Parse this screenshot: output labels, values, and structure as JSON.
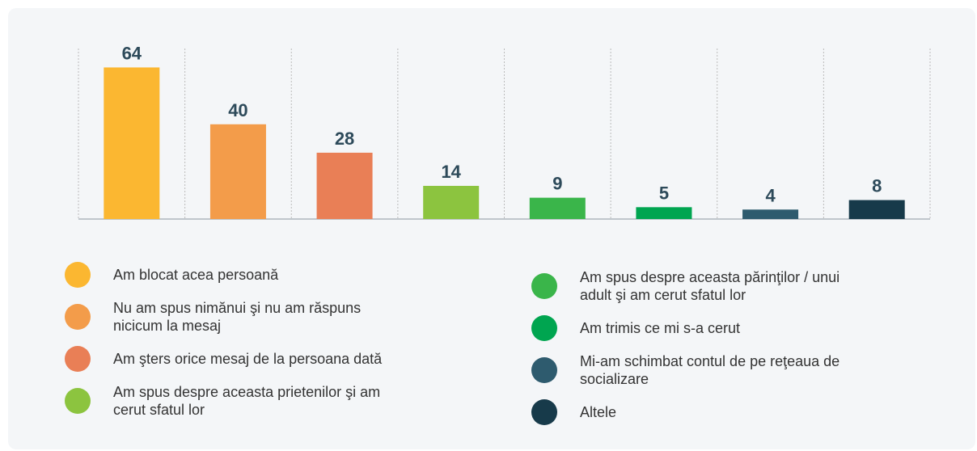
{
  "chart_data": {
    "type": "bar",
    "categories": [
      "Am blocat acea persoană",
      "Nu am spus nimănui şi nu am răspuns nicicum la mesaj",
      "Am şters orice mesaj de la persoana dată",
      "Am spus despre aceasta prietenilor şi am cerut sfatul lor",
      "Am spus despre aceasta părinţilor / unui adult şi am cerut sfatul lor",
      "Am trimis ce mi s-a cerut",
      "Mi-am schimbat contul de pe reţeaua de socializare",
      "Altele"
    ],
    "values": [
      64,
      40,
      28,
      14,
      9,
      5,
      4,
      8
    ],
    "colors": [
      "#fbb731",
      "#f39c4a",
      "#e97f56",
      "#8cc43f",
      "#3ab54a",
      "#00a550",
      "#2e5b6e",
      "#173a4a"
    ],
    "ylim": [
      0,
      72
    ]
  }
}
